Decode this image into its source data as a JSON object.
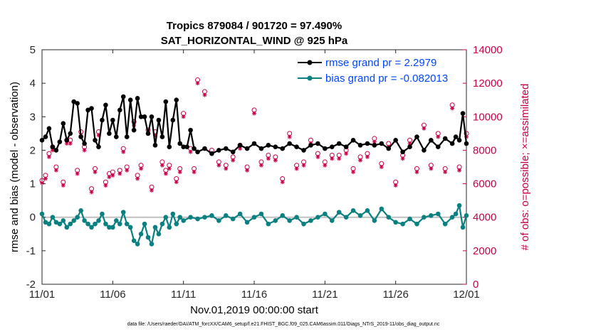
{
  "colors": {
    "rmse": "#000000",
    "bias": "#0a8080",
    "obs": "#c8004a",
    "zero_line": "#c0c0c0",
    "legend_text": "#0046ff"
  },
  "chart_data": {
    "type": "line",
    "title": "Tropics 879084 / 901720 = 97.490%",
    "subtitle": "SAT_HORIZONTAL_WIND @ 925 hPa",
    "xlabel": "Nov.01,2019 00:00:00 start",
    "ylabel_left": "rmse and bias (model - observation)",
    "ylabel_right": "# of obs: o=possible; ×=assimilated",
    "xlim": [
      0,
      30
    ],
    "ylim": [
      -2,
      5
    ],
    "ylim_right": [
      0,
      14000
    ],
    "x_ticks": [
      0,
      5,
      10,
      15,
      20,
      25,
      30
    ],
    "x_tick_labels": [
      "11/01",
      "11/06",
      "11/11",
      "11/16",
      "11/21",
      "11/26",
      "12/01"
    ],
    "y_ticks": [
      -2,
      -1,
      0,
      1,
      2,
      3,
      4,
      5
    ],
    "y_tick_labels": [
      "-2",
      "-1",
      "0",
      "1",
      "2",
      "3",
      "4",
      "5"
    ],
    "y2_ticks": [
      0,
      2000,
      4000,
      6000,
      8000,
      10000,
      12000,
      14000
    ],
    "y2_tick_labels": [
      "0",
      "2000",
      "4000",
      "6000",
      "8000",
      "10000",
      "12000",
      "14000"
    ],
    "legend": [
      {
        "name": "rmse grand pr = 2.2979"
      },
      {
        "name": "bias grand pr = -0.082013"
      }
    ],
    "footnote": "data file: /Users/raeder/DAI/ATM_forcXX/CAM6_setup/f.e21.FHIST_BGC.f09_025.CAM6assim.011/Diags_NTrS_2019-11/obs_diag_output.nc",
    "series": [
      {
        "name": "rmse",
        "x": [
          0,
          0.25,
          0.5,
          0.75,
          1,
          1.25,
          1.5,
          1.75,
          2,
          2.25,
          2.5,
          2.75,
          3,
          3.25,
          3.5,
          3.75,
          4,
          4.25,
          4.5,
          4.75,
          5,
          5.25,
          5.5,
          5.75,
          6,
          6.25,
          6.5,
          6.75,
          7,
          7.25,
          7.5,
          7.75,
          8,
          8.25,
          8.5,
          8.75,
          9,
          9.25,
          9.5,
          9.75,
          10,
          10.25,
          10.5,
          10.75,
          11,
          11.5,
          12,
          12.5,
          13,
          13.5,
          14,
          14.5,
          15,
          15.5,
          16,
          16.5,
          17,
          17.5,
          18,
          18.5,
          19,
          19.5,
          20,
          20.5,
          21,
          21.5,
          22,
          22.5,
          23,
          23.5,
          24,
          24.5,
          25,
          25.5,
          26,
          26.5,
          27,
          27.5,
          28,
          28.5,
          29,
          29.25,
          29.5,
          29.75,
          30
        ],
        "values": [
          2.3,
          2.4,
          2.65,
          2.1,
          2.0,
          2.25,
          2.8,
          2.3,
          2.5,
          3.45,
          3.4,
          2.4,
          2.2,
          3.2,
          3.25,
          2.3,
          2.1,
          2.9,
          3.35,
          2.5,
          2.9,
          2.4,
          3.2,
          3.6,
          2.4,
          3.5,
          2.6,
          3.55,
          3.0,
          3.0,
          2.5,
          3.0,
          2.15,
          2.9,
          2.4,
          3.45,
          2.1,
          2.9,
          3.5,
          2.2,
          2.1,
          2.1,
          2.6,
          2.05,
          1.95,
          2.05,
          1.9,
          2.0,
          2.05,
          1.95,
          2.15,
          2.05,
          2.2,
          2.05,
          2.15,
          2.1,
          2.05,
          2.2,
          2.1,
          2.0,
          2.15,
          2.2,
          2.05,
          2.1,
          2.2,
          2.1,
          2.3,
          2.15,
          2.2,
          2.15,
          2.2,
          2.05,
          2.3,
          1.95,
          2.1,
          2.4,
          2.0,
          2.3,
          2.1,
          2.35,
          2.2,
          2.4,
          2.3,
          3.1,
          2.2
        ]
      },
      {
        "name": "bias",
        "x": [
          0,
          0.25,
          0.5,
          0.75,
          1,
          1.25,
          1.5,
          1.75,
          2,
          2.25,
          2.5,
          2.75,
          3,
          3.25,
          3.5,
          3.75,
          4,
          4.25,
          4.5,
          4.75,
          5,
          5.25,
          5.5,
          5.75,
          6,
          6.25,
          6.5,
          6.75,
          7,
          7.25,
          7.5,
          7.75,
          8,
          8.25,
          8.5,
          8.75,
          9,
          9.25,
          9.5,
          9.75,
          10,
          10.5,
          11,
          11.5,
          12,
          12.5,
          13,
          13.5,
          14,
          14.5,
          15,
          15.5,
          16,
          16.5,
          17,
          17.5,
          18,
          18.5,
          19,
          19.5,
          20,
          20.5,
          21,
          21.5,
          22,
          22.5,
          23,
          23.5,
          24,
          24.5,
          25,
          25.5,
          26,
          26.5,
          27,
          27.5,
          28,
          28.5,
          29,
          29.25,
          29.5,
          29.75,
          30
        ],
        "values": [
          0.1,
          -0.15,
          -0.2,
          0.0,
          -0.15,
          -0.2,
          -0.1,
          -0.3,
          -0.2,
          -0.1,
          0.0,
          0.2,
          -0.1,
          -0.2,
          -0.3,
          -0.2,
          -0.1,
          0.1,
          -0.2,
          -0.3,
          -0.3,
          -0.1,
          -0.2,
          0.15,
          -0.2,
          -0.3,
          -0.7,
          -0.8,
          -0.5,
          -0.2,
          -0.6,
          -0.8,
          -0.3,
          -0.5,
          -0.2,
          0.0,
          -0.3,
          0.1,
          -0.2,
          0.0,
          -0.1,
          0.0,
          -0.05,
          0.0,
          0.05,
          -0.1,
          0.05,
          -0.05,
          0.1,
          -0.15,
          0.0,
          0.1,
          -0.2,
          -0.1,
          0.05,
          -0.1,
          0.0,
          -0.2,
          -0.1,
          0.0,
          0.1,
          -0.1,
          0.15,
          0.0,
          0.2,
          0.05,
          0.2,
          -0.1,
          0.25,
          0.0,
          -0.15,
          -0.2,
          -0.05,
          -0.2,
          0.0,
          0.05,
          0.1,
          -0.2,
          0.0,
          0.1,
          0.35,
          -0.3,
          0.05
        ]
      },
      {
        "name": "obs possible",
        "axis": "right",
        "x": [
          0,
          0.25,
          0.5,
          0.75,
          1,
          1.5,
          1.75,
          2,
          2.5,
          2.75,
          3,
          3.5,
          3.75,
          4,
          4.5,
          4.75,
          5,
          5.5,
          5.75,
          6,
          6.5,
          6.75,
          7,
          7.5,
          7.75,
          8,
          8.5,
          8.75,
          9,
          9.5,
          9.75,
          10,
          10.5,
          10.75,
          11,
          11.5,
          12,
          12.5,
          13,
          13.5,
          14,
          14.5,
          15,
          15.5,
          16,
          16.5,
          17,
          17.5,
          18,
          18.5,
          19,
          19.5,
          20,
          20.5,
          21,
          21.5,
          22,
          22.5,
          23,
          23.5,
          24,
          24.5,
          25,
          25.5,
          26,
          26.5,
          27,
          27.5,
          28,
          28.5,
          29,
          29.5,
          30
        ],
        "values": [
          6200,
          6500,
          7800,
          8200,
          7000,
          6100,
          8600,
          8600,
          6800,
          9100,
          8200,
          5700,
          6900,
          9100,
          6100,
          6600,
          6700,
          6800,
          8100,
          7000,
          9700,
          6500,
          7100,
          9200,
          5800,
          9100,
          7300,
          6800,
          7100,
          6300,
          6900,
          10200,
          8100,
          6900,
          12200,
          11500,
          8000,
          7300,
          7100,
          7600,
          8300,
          7000,
          10400,
          7300,
          7700,
          7600,
          6300,
          9000,
          7100,
          7300,
          8600,
          7800,
          7300,
          7700,
          7700,
          8000,
          6900,
          7600,
          7800,
          8700,
          7200,
          8400,
          6100,
          7700,
          8600,
          6900,
          9500,
          7100,
          9000,
          6900,
          10700,
          7000,
          9000
        ]
      },
      {
        "name": "obs assimilated",
        "axis": "right",
        "x": [
          0,
          0.25,
          0.5,
          0.75,
          1,
          1.5,
          1.75,
          2,
          2.5,
          2.75,
          3,
          3.5,
          3.75,
          4,
          4.5,
          4.75,
          5,
          5.5,
          5.75,
          6,
          6.5,
          6.75,
          7,
          7.5,
          7.75,
          8,
          8.5,
          8.75,
          9,
          9.5,
          9.75,
          10,
          10.5,
          10.75,
          11,
          11.5,
          12,
          12.5,
          13,
          13.5,
          14,
          14.5,
          15,
          15.5,
          16,
          16.5,
          17,
          17.5,
          18,
          18.5,
          19,
          19.5,
          20,
          20.5,
          21,
          21.5,
          22,
          22.5,
          23,
          23.5,
          24,
          24.5,
          25,
          25.5,
          26,
          26.5,
          27,
          27.5,
          28,
          28.5,
          29,
          29.5,
          30
        ],
        "values": [
          6050,
          6300,
          7600,
          8000,
          6800,
          5900,
          8400,
          8400,
          6600,
          8900,
          8000,
          5500,
          6700,
          8900,
          5900,
          6400,
          6500,
          6600,
          7900,
          6800,
          9500,
          6300,
          6900,
          9000,
          5600,
          8900,
          7100,
          6600,
          6900,
          6100,
          6700,
          10000,
          7900,
          6700,
          12000,
          11300,
          7800,
          7100,
          6900,
          7400,
          8100,
          6800,
          10200,
          7100,
          7500,
          7400,
          6100,
          8800,
          6900,
          7100,
          8400,
          7600,
          7100,
          7500,
          7500,
          7800,
          6700,
          7400,
          7600,
          8500,
          7000,
          8200,
          5900,
          7500,
          8400,
          6700,
          9300,
          6900,
          8800,
          6700,
          10500,
          6800,
          8800
        ]
      }
    ]
  }
}
